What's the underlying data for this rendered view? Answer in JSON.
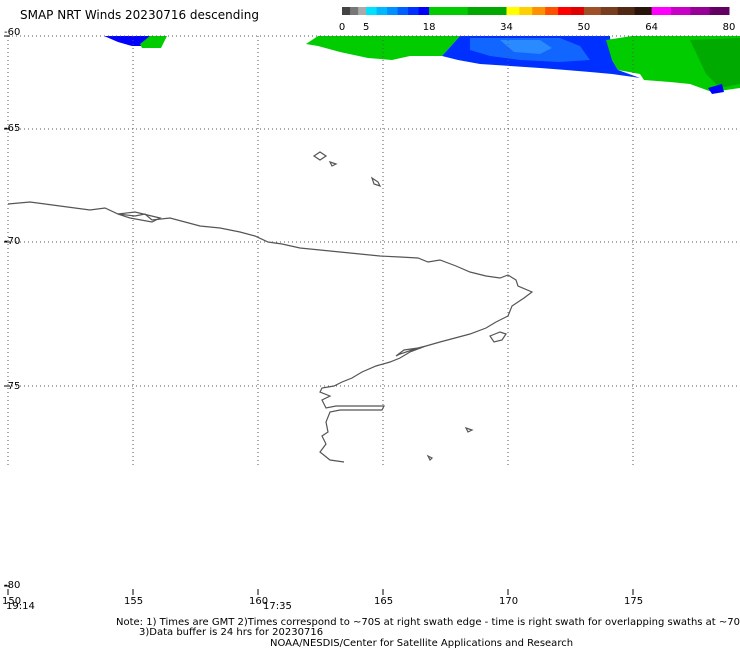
{
  "title": "SMAP NRT Winds  20230716  descending",
  "legend": {
    "ticks": [
      "0",
      "5",
      "18",
      "34",
      "50",
      "64",
      "80"
    ],
    "tick_values": [
      0,
      5,
      18,
      34,
      50,
      64,
      80
    ],
    "bins": [
      {
        "from": 0,
        "to": 5,
        "colors": [
          "#444444",
          "#777777",
          "#aaaaaa"
        ]
      },
      {
        "from": 5,
        "to": 18,
        "colors": [
          "#00e0ff",
          "#00b8ff",
          "#0090ff",
          "#0060ff",
          "#0030ff",
          "#0000ff"
        ]
      },
      {
        "from": 18,
        "to": 34,
        "colors": [
          "#00cc00",
          "#00a800"
        ]
      },
      {
        "from": 34,
        "to": 50,
        "colors": [
          "#ffff00",
          "#ffd000",
          "#ff9000",
          "#ff5000",
          "#ff0000",
          "#e00000"
        ]
      },
      {
        "from": 50,
        "to": 64,
        "colors": [
          "#a05028",
          "#783c1e",
          "#502814",
          "#28140a"
        ]
      },
      {
        "from": 64,
        "to": 80,
        "colors": [
          "#ff00ff",
          "#c800c8",
          "#960096",
          "#640064"
        ]
      }
    ]
  },
  "map": {
    "lon_range": [
      150,
      179
    ],
    "lat_range": [
      -60,
      -80
    ],
    "lon_labels": [
      "150",
      "155",
      "160",
      "165",
      "170",
      "175"
    ],
    "lat_labels": [
      "-60",
      "-65",
      "-70",
      "-75",
      "-80"
    ],
    "time_labels": [
      "19:14",
      "17:35"
    ]
  },
  "notes": {
    "line1": "Note: 1) Times are GMT 2)Times correspond to ~70S at right swath edge - time is right swath for overlapping swaths at ~70S",
    "line2": "3)Data buffer is 24 hrs for 20230716",
    "line3": "NOAA/NESDIS/Center for Satellite Applications and Research"
  }
}
